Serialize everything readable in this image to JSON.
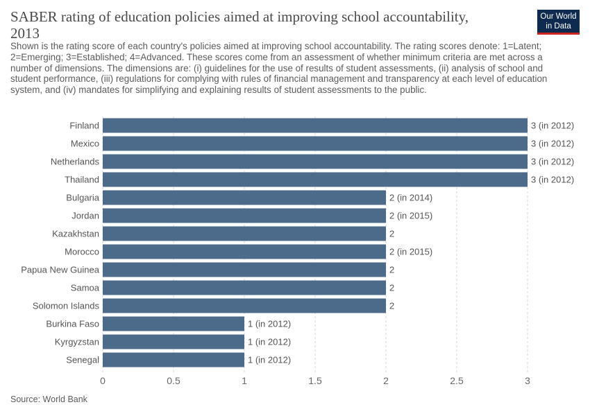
{
  "header": {
    "title": "SABER rating of education policies aimed at improving school accountability, 2013",
    "subtitle": "Shown is the rating score of each country's policies aimed at improving school accountability. The rating scores denote: 1=Latent; 2=Emerging; 3=Established; 4=Advanced. These scores come from an assessment of whether minimum criteria are met across a number of dimensions. The dimensions are: (i) guidelines for the use of results of student assessments, (ii) analysis of school and student performance, (iii) regulations for complying with rules of financial management and transparency at each level of education system, and (iv) mandates for simplifying and explaining results of student assessments to the public."
  },
  "logo": {
    "line1": "Our World",
    "line2": "in Data",
    "bg_color": "#0f2a4f",
    "accent_color": "#ce261e"
  },
  "footer": {
    "source": "Source: World Bank"
  },
  "chart_data": {
    "type": "bar",
    "orientation": "horizontal",
    "bar_color": "#4c6a8a",
    "xlim": [
      0,
      3
    ],
    "x_ticks": [
      "0",
      "0.5",
      "1",
      "1.5",
      "2",
      "2.5",
      "3"
    ],
    "grid": "vertical-dashed",
    "categories": [
      "Finland",
      "Mexico",
      "Netherlands",
      "Thailand",
      "Bulgaria",
      "Jordan",
      "Kazakhstan",
      "Morocco",
      "Papua New Guinea",
      "Samoa",
      "Solomon Islands",
      "Burkina Faso",
      "Kyrgyzstan",
      "Senegal"
    ],
    "values": [
      3,
      3,
      3,
      3,
      2,
      2,
      2,
      2,
      2,
      2,
      2,
      1,
      1,
      1
    ],
    "value_labels": [
      "3 (in 2012)",
      "3 (in 2012)",
      "3 (in 2012)",
      "3 (in 2012)",
      "2 (in 2014)",
      "2 (in 2015)",
      "2",
      "2 (in 2015)",
      "2",
      "2",
      "2",
      "1 (in 2012)",
      "1 (in 2012)",
      "1 (in 2012)"
    ]
  }
}
